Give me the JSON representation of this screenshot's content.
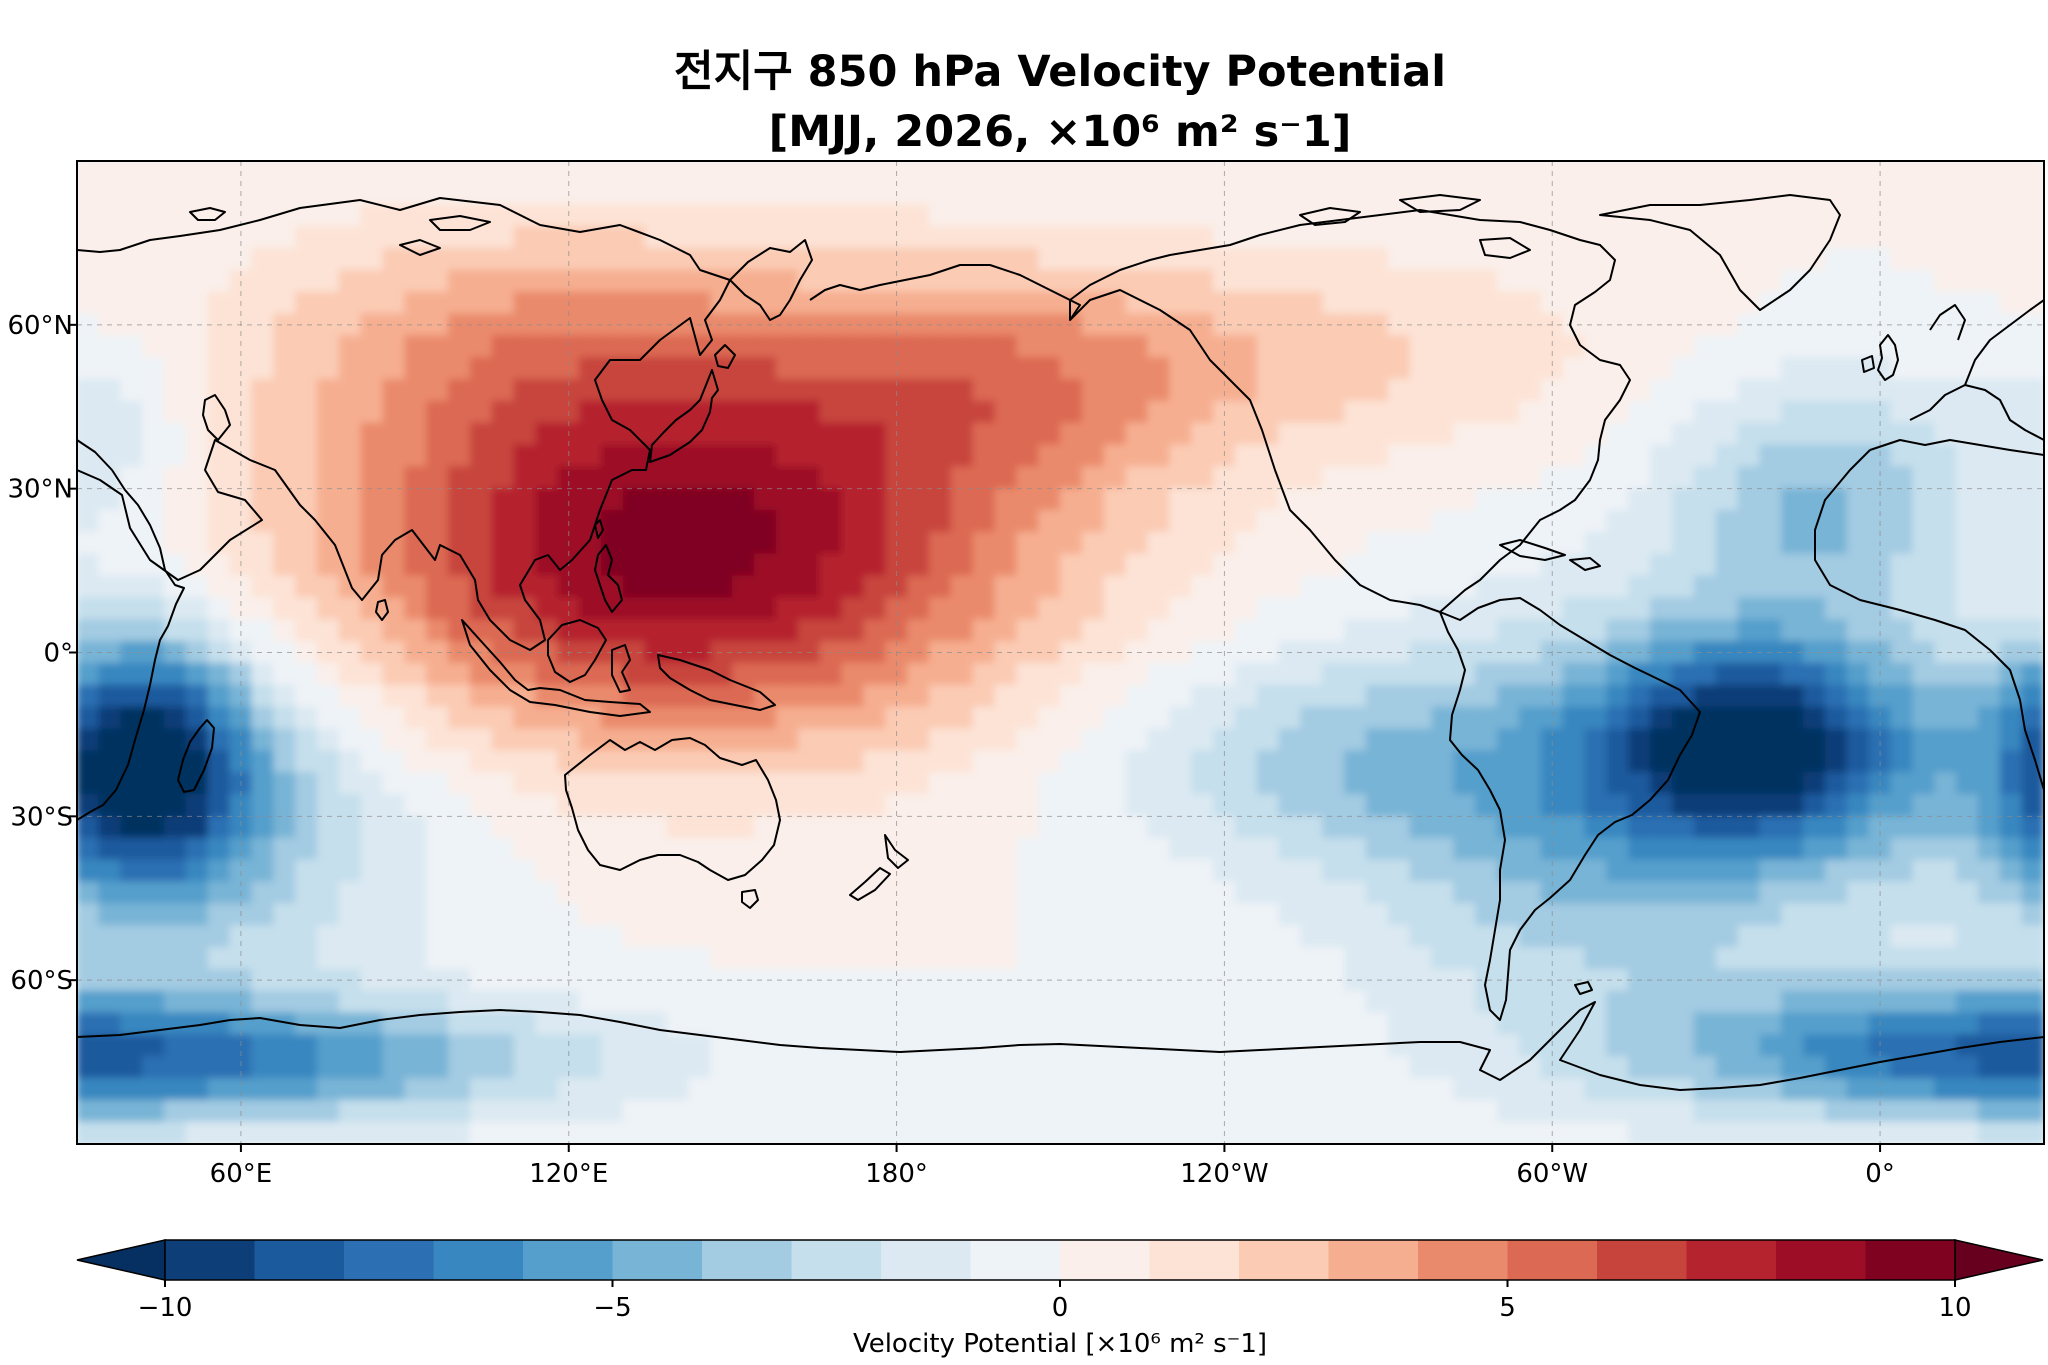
{
  "chart_data": {
    "type": "heatmap",
    "title_line1": "전지구 850 hPa Velocity Potential",
    "title_line2": "[MJJ, 2026, ×10⁶ m² s⁻1]",
    "projection": "PlateCarree, central longitude 180°E",
    "lon_range": [
      30,
      390
    ],
    "lat_range": [
      -90,
      90
    ],
    "x_ticks": [
      {
        "lon": 60,
        "label": "60°E"
      },
      {
        "lon": 120,
        "label": "120°E"
      },
      {
        "lon": 180,
        "label": "180°"
      },
      {
        "lon": 240,
        "label": "120°W"
      },
      {
        "lon": 300,
        "label": "60°W"
      },
      {
        "lon": 360,
        "label": "0°"
      }
    ],
    "y_ticks": [
      {
        "lat": 60,
        "label": "60°N"
      },
      {
        "lat": 30,
        "label": "30°N"
      },
      {
        "lat": 0,
        "label": "0°"
      },
      {
        "lat": -30,
        "label": "30°S"
      },
      {
        "lat": -60,
        "label": "60°S"
      }
    ],
    "colorbar": {
      "label": "Velocity Potential [×10⁶ m² s⁻1]",
      "vmin": -10,
      "vmax": 10,
      "extend": "both",
      "tick_values": [
        -10,
        -5,
        0,
        5,
        10
      ],
      "tick_labels": [
        "−10",
        "−5",
        "0",
        "5",
        "10"
      ],
      "level_step": 1,
      "colors": [
        "#053061",
        "#0e3e78",
        "#1c5a9e",
        "#2c6fb2",
        "#3987c0",
        "#559fcc",
        "#78b4d6",
        "#a3cbe2",
        "#c5dfec",
        "#dce9f2",
        "#eef3f7",
        "#faefea",
        "#fde3d6",
        "#fbcbb4",
        "#f6ae90",
        "#ea8a6c",
        "#dc6953",
        "#c7443c",
        "#b5232e",
        "#9d0e26",
        "#7f0320",
        "#67001f"
      ]
    },
    "field_centers": [
      {
        "name": "Western Pacific / Maritime Continent maximum",
        "lon": 140,
        "lat": 18,
        "value": 9.4
      },
      {
        "name": "South Atlantic minimum",
        "lon": 338,
        "lat": -17,
        "value": -8.6
      },
      {
        "name": "Western Indian Ocean / Madagascar minimum",
        "lon": 42,
        "lat": -20,
        "value": -9.6
      },
      {
        "name": "Southern Ocean minimum",
        "lon": 55,
        "lat": -75,
        "value": -5.5
      }
    ]
  },
  "colors": {
    "coastline": "#000000",
    "gridline": "#8c8c8c",
    "background": "#ffffff"
  }
}
